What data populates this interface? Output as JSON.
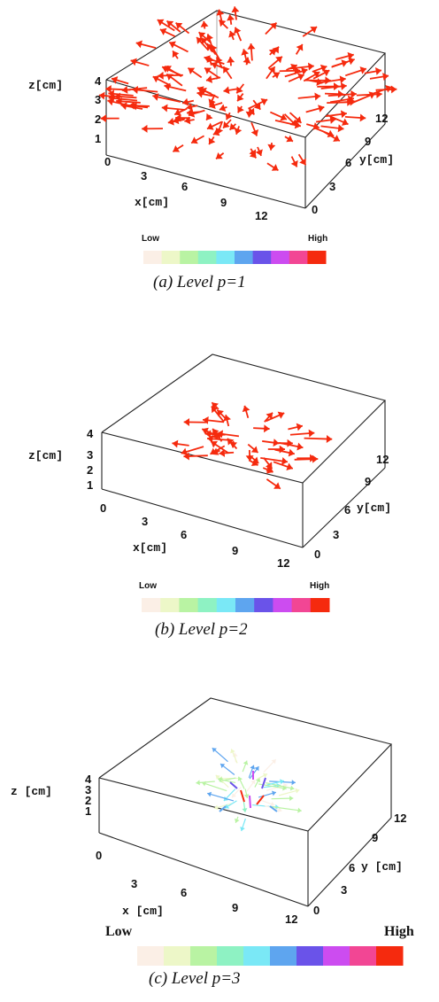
{
  "colorbar": {
    "low_label": "Low",
    "high_label": "High",
    "colors": [
      "#fbefe6",
      "#edf7c8",
      "#b9f3a3",
      "#8ef2c3",
      "#7ae8f6",
      "#5ea5ef",
      "#6a53e9",
      "#cc4cf0",
      "#f24694",
      "#f52a0e"
    ]
  },
  "chart_data": [
    {
      "type": "3d-vector-field",
      "caption": "(a)  Level p=1",
      "xlabel": "x[cm]",
      "ylabel": "y[cm]",
      "zlabel": "z[cm]",
      "x_ticks": [
        "0",
        "3",
        "6",
        "9",
        "12"
      ],
      "y_ticks": [
        "0",
        "3",
        "6",
        "9",
        "12"
      ],
      "z_ticks": [
        "1",
        "2",
        "3",
        "4"
      ],
      "z_origin_label": "0",
      "xlim": [
        0,
        12
      ],
      "ylim": [
        0,
        12
      ],
      "zlim": [
        0,
        4
      ],
      "magnitude_level": 9,
      "arrow_color": "#f52a0e",
      "spread": 1.0,
      "density": 150
    },
    {
      "type": "3d-vector-field",
      "caption": "(b)  Level p=2",
      "xlabel": "x[cm]",
      "ylabel": "y[cm]",
      "zlabel": "z[cm]",
      "x_ticks": [
        "0",
        "3",
        "6",
        "9",
        "12"
      ],
      "y_ticks": [
        "0",
        "3",
        "6",
        "9",
        "12"
      ],
      "z_ticks": [
        "1",
        "2",
        "3",
        "4"
      ],
      "z_origin_label": "0",
      "xlim": [
        0,
        12
      ],
      "ylim": [
        0,
        12
      ],
      "zlim": [
        0,
        4
      ],
      "magnitude_level": 9,
      "arrow_color": "#f52a0e",
      "spread": 0.45,
      "density": 45
    },
    {
      "type": "3d-vector-field",
      "caption": "(c)  Level p=3",
      "xlabel": "x [cm]",
      "ylabel": "y [cm]",
      "zlabel": "z [cm]",
      "x_ticks": [
        "0",
        "3",
        "6",
        "9",
        "12"
      ],
      "y_ticks": [
        "0",
        "3",
        "6",
        "9",
        "12"
      ],
      "z_ticks": [
        "1",
        "2",
        "3",
        "4"
      ],
      "z_origin_label": "0",
      "xlim": [
        0,
        12
      ],
      "ylim": [
        0,
        12
      ],
      "zlim": [
        0,
        4
      ],
      "magnitude_level": 6,
      "arrow_color": "#5ea5ef",
      "spread": 0.3,
      "density": 40
    }
  ]
}
